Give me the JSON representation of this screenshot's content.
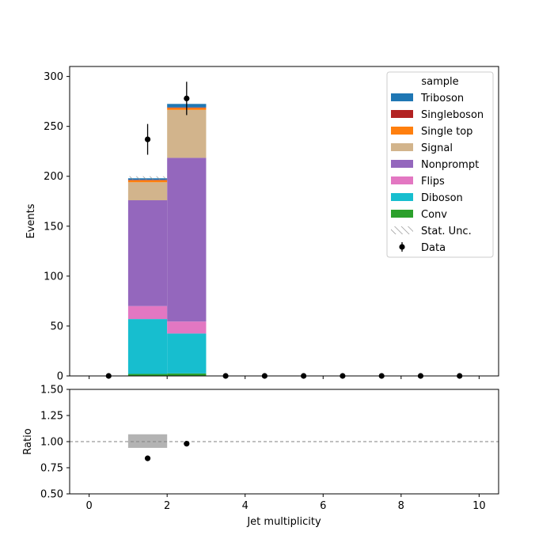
{
  "chart_data": [
    {
      "type": "bar",
      "panel": "main",
      "stacked": true,
      "ylabel": "Events",
      "xlabel": "",
      "xlim": [
        -0.5,
        10.5
      ],
      "ylim": [
        0,
        310
      ],
      "yticks": [
        0,
        50,
        100,
        150,
        200,
        250,
        300
      ],
      "bin_edges": [
        1,
        2,
        3
      ],
      "series": [
        {
          "name": "Conv",
          "color": "#2ca02c",
          "values": [
            2,
            2.5
          ]
        },
        {
          "name": "Diboson",
          "color": "#17becf",
          "values": [
            55,
            40
          ]
        },
        {
          "name": "Flips",
          "color": "#e377c2",
          "values": [
            13,
            12
          ]
        },
        {
          "name": "Nonprompt",
          "color": "#9467bd",
          "values": [
            106,
            164
          ]
        },
        {
          "name": "Signal",
          "color": "#d2b48c",
          "values": [
            18,
            48
          ]
        },
        {
          "name": "Single top",
          "color": "#ff7f0e",
          "values": [
            2,
            2
          ]
        },
        {
          "name": "Singleboson",
          "color": "#b22222",
          "values": [
            0.5,
            0.5
          ]
        },
        {
          "name": "Triboson",
          "color": "#1f77b4",
          "values": [
            1.5,
            3.5
          ]
        }
      ],
      "stat_unc": {
        "name": "Stat. Unc.",
        "bins": [
          [
            1,
            2
          ]
        ],
        "low": [
          196
        ],
        "high": [
          200
        ]
      },
      "data": {
        "name": "Data",
        "x": [
          0.5,
          1.5,
          2.5,
          3.5,
          4.5,
          5.5,
          6.5,
          7.5,
          8.5,
          9.5
        ],
        "y": [
          0,
          237,
          278,
          0,
          0,
          0,
          0,
          0,
          0,
          0
        ],
        "yerr": [
          0,
          15.4,
          16.7,
          0,
          0,
          0,
          0,
          0,
          0,
          0
        ]
      },
      "legend": {
        "title": "sample",
        "placement": "top-right",
        "entries": [
          "Triboson",
          "Singleboson",
          "Single top",
          "Signal",
          "Nonprompt",
          "Flips",
          "Diboson",
          "Conv",
          "Stat. Unc.",
          "Data"
        ]
      }
    },
    {
      "type": "scatter",
      "panel": "ratio",
      "xlabel": "Jet multiplicity",
      "ylabel": "Ratio",
      "xlim": [
        -0.5,
        10.5
      ],
      "ylim": [
        0.5,
        1.5
      ],
      "xticks": [
        0,
        2,
        4,
        6,
        8,
        10
      ],
      "yticks": [
        "0.50",
        "0.75",
        "1.00",
        "1.25",
        "1.50"
      ],
      "reference_line": 1.0,
      "unc_band": {
        "bins": [
          [
            1,
            2
          ]
        ],
        "low": [
          0.94
        ],
        "high": [
          1.07
        ],
        "color": "#b3b3b3"
      },
      "points": {
        "x": [
          1.5,
          2.5
        ],
        "y": [
          0.84,
          0.98
        ]
      }
    }
  ]
}
